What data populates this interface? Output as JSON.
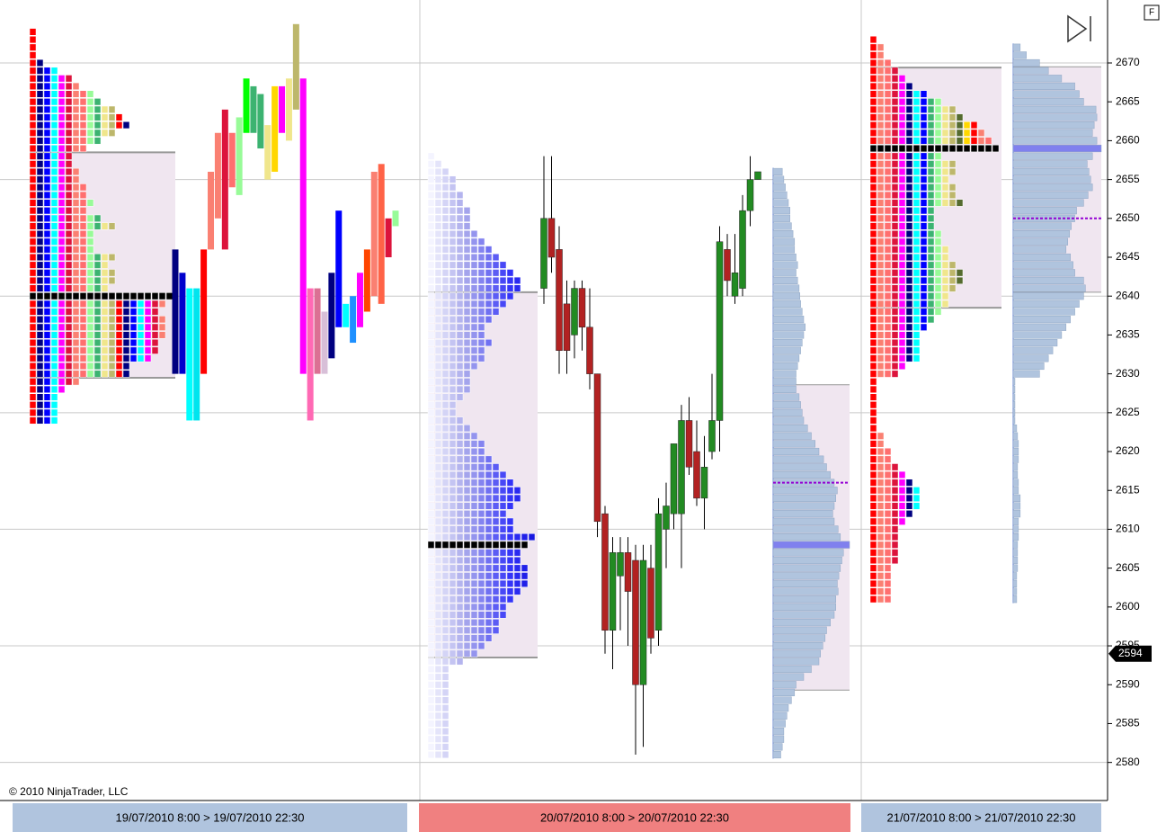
{
  "chart_data": {
    "type": "market-profile",
    "ylim": [
      2575.1,
      2678.1
    ],
    "yticks": [
      2580,
      2585,
      2590,
      2595,
      2600,
      2605,
      2610,
      2615,
      2620,
      2625,
      2630,
      2635,
      2640,
      2645,
      2650,
      2655,
      2660,
      2665,
      2670
    ],
    "grid": true,
    "grid_every": 3,
    "current_price": 2594,
    "copyright": "© 2010 NinjaTrader, LLC",
    "button": "F",
    "sessions": [
      {
        "label": "19/07/2010  8:00 > 19/07/2010  22:30",
        "label_color": "#b0c4de",
        "tpo": {
          "low": 2624,
          "counts": [
            4,
            4,
            4,
            4,
            5,
            7,
            14,
            14,
            17,
            18,
            18,
            19,
            19,
            19,
            18,
            19,
            20,
            11,
            12,
            12,
            11,
            12,
            9,
            9,
            9,
            12,
            10,
            8,
            9,
            8,
            8,
            7,
            7,
            6,
            6,
            8,
            10,
            12,
            14,
            13,
            12,
            10,
            9,
            7,
            6,
            4,
            2,
            1,
            1,
            1,
            1
          ],
          "colors": [
            "#ff0000",
            "#000080",
            "#0000ff",
            "#00ffff",
            "#ff00ff",
            "#dc143c",
            "#fa8072",
            "#ff6f6f",
            "#98fb98",
            "#3cb371",
            "#f0e68c",
            "#bdb76b"
          ]
        },
        "value_area": [
          2629.5,
          2658.5
        ],
        "poc": 2640,
        "bars": {
          "lows": [
            2630,
            2630,
            2624,
            2624,
            2630,
            2646,
            2650,
            2646,
            2654,
            2653,
            2661,
            2661,
            2659,
            2655,
            2656,
            2661,
            2660,
            2664,
            2630,
            2624,
            2630,
            2630,
            2632,
            2636,
            2636,
            2634,
            2636,
            2638,
            2640,
            2639,
            2645,
            2649
          ],
          "highs": [
            2646,
            2643,
            2641,
            2641,
            2646,
            2656,
            2661,
            2664,
            2661,
            2663,
            2668,
            2667,
            2666,
            2662,
            2667,
            2667,
            2668,
            2675,
            2668,
            2641,
            2641,
            2638,
            2643,
            2651,
            2639,
            2640,
            2643,
            2646,
            2656,
            2657,
            2650,
            2651
          ],
          "colors": [
            "#000080",
            "#0000cd",
            "#00ffff",
            "#00e5ee",
            "#ff0000",
            "#fa8072",
            "#fa8072",
            "#dc143c",
            "#ff6f6f",
            "#98fb98",
            "#00ff00",
            "#3cb371",
            "#3cb371",
            "#f0e68c",
            "#ffd700",
            "#ff00ff",
            "#f0e68c",
            "#bdb76b",
            "#ff00ff",
            "#ff69b4",
            "#db7093",
            "#d8bfd8",
            "#000080",
            "#0000ff",
            "#00ffff",
            "#1e90ff",
            "#ff00ff",
            "#ff4500",
            "#fa8072",
            "#ff6347",
            "#dc143c",
            "#98fb98"
          ]
        }
      },
      {
        "label": "20/07/2010  8:00 > 20/07/2010  22:30",
        "label_color": "#f08080",
        "tpo": {
          "low": 2581,
          "counts": [
            3,
            3,
            3,
            3,
            3,
            3,
            3,
            3,
            3,
            3,
            3,
            3,
            5,
            7,
            8,
            9,
            10,
            10,
            11,
            11,
            12,
            13,
            14,
            14,
            14,
            13,
            13,
            14,
            15,
            12,
            12,
            11,
            12,
            13,
            13,
            12,
            11,
            10,
            9,
            8,
            8,
            7,
            6,
            5,
            4,
            4,
            5,
            6,
            6,
            6,
            7,
            8,
            8,
            9,
            8,
            8,
            9,
            10,
            11,
            12,
            13,
            13,
            12,
            11,
            10,
            9,
            8,
            7,
            6,
            6,
            6,
            5,
            5,
            4,
            4,
            3,
            2,
            1
          ],
          "colors": [
            "#f4f4ff",
            "#e4e4fa",
            "#d4d4f6",
            "#c4c4f2",
            "#b4b4ee",
            "#a4a4ec",
            "#9494ee",
            "#8484f0",
            "#7070f2",
            "#5c5cf4",
            "#4848f6",
            "#3434f8",
            "#2a2af0",
            "#2020e8",
            "#1818e0"
          ]
        },
        "value_area": [
          2593.5,
          2640.5
        ],
        "poc": 2608,
        "candles": {
          "open": [
            2641,
            2650,
            2646,
            2639,
            2635,
            2641,
            2636,
            2630,
            2612,
            2597,
            2604,
            2607,
            2606,
            2590,
            2605,
            2597,
            2610,
            2612,
            2612,
            2624,
            2620,
            2614,
            2620,
            2624,
            2646,
            2640,
            2641,
            2651,
            2655
          ],
          "high": [
            2658,
            2658,
            2649,
            2642,
            2642,
            2642,
            2641,
            2630,
            2613,
            2609,
            2609,
            2609,
            2608,
            2608,
            2608,
            2614,
            2616,
            2621,
            2626,
            2627,
            2624,
            2622,
            2630,
            2649,
            2648,
            2648,
            2653,
            2658,
            2656
          ],
          "low": [
            2639,
            2643,
            2630,
            2630,
            2632,
            2633,
            2628,
            2609,
            2594,
            2592,
            2597,
            2595,
            2581,
            2582,
            2594,
            2595,
            2605,
            2610,
            2605,
            2617,
            2613,
            2610,
            2619,
            2620,
            2640,
            2639,
            2640,
            2649,
            2655
          ],
          "close": [
            2650,
            2645,
            2633,
            2633,
            2641,
            2636,
            2630,
            2611,
            2597,
            2607,
            2607,
            2602,
            2590,
            2606,
            2596,
            2612,
            2613,
            2621,
            2624,
            2618,
            2614,
            2618,
            2624,
            2647,
            2642,
            2643,
            2651,
            2655,
            2656
          ]
        },
        "volume": {
          "low": 2581,
          "values": [
            10,
            12,
            14,
            14,
            16,
            18,
            20,
            24,
            28,
            30,
            40,
            50,
            60,
            62,
            65,
            68,
            70,
            75,
            80,
            82,
            82,
            85,
            84,
            86,
            88,
            90,
            92,
            100,
            88,
            85,
            80,
            78,
            80,
            82,
            84,
            80,
            75,
            70,
            66,
            60,
            55,
            50,
            45,
            40,
            38,
            36,
            34,
            30,
            30,
            30,
            32,
            34,
            36,
            38,
            40,
            42,
            40,
            38,
            36,
            35,
            34,
            32,
            30,
            32,
            30,
            28,
            28,
            26,
            24,
            22,
            22,
            20,
            18,
            16,
            14,
            12
          ]
        },
        "volume_value_area": [
          2589.3,
          2628.6
        ],
        "vwap": 2616
      },
      {
        "label": "21/07/2010  8:00 > 21/07/2010  22:30",
        "label_color": "#b0c4de",
        "tpo": {
          "low": 2601,
          "counts": [
            3,
            3,
            3,
            3,
            3,
            4,
            4,
            4,
            4,
            4,
            5,
            6,
            7,
            7,
            7,
            6,
            5,
            4,
            3,
            3,
            2,
            2,
            1,
            1,
            1,
            1,
            1,
            1,
            1,
            4,
            5,
            7,
            7,
            7,
            7,
            8,
            9,
            10,
            11,
            11,
            12,
            13,
            13,
            12,
            11,
            11,
            10,
            10,
            9,
            9,
            9,
            13,
            12,
            12,
            11,
            12,
            12,
            10,
            18,
            17,
            16,
            15,
            13,
            12,
            10,
            8,
            6,
            5,
            4,
            3,
            2,
            2,
            1
          ],
          "colors": [
            "#ff0000",
            "#fa8072",
            "#ff6f6f",
            "#dc143c",
            "#ff00ff",
            "#000080",
            "#00ffff",
            "#0000ff",
            "#3cb371",
            "#98fb98",
            "#f0e68c",
            "#bdb76b",
            "#556b2f",
            "#ffd700"
          ]
        },
        "value_area": [
          2638.5,
          2669.4
        ],
        "poc": 2659,
        "volume": {
          "low": 2601,
          "values": [
            4,
            4,
            4,
            4,
            5,
            5,
            5,
            5,
            6,
            6,
            6,
            8,
            8,
            8,
            6,
            6,
            5,
            5,
            6,
            6,
            6,
            5,
            4,
            2,
            2,
            2,
            2,
            2,
            2,
            30,
            35,
            40,
            45,
            50,
            55,
            60,
            65,
            70,
            75,
            80,
            82,
            80,
            70,
            68,
            65,
            60,
            62,
            64,
            66,
            70,
            72,
            80,
            85,
            90,
            88,
            86,
            84,
            90,
            100,
            95,
            90,
            92,
            95,
            94,
            80,
            75,
            70,
            55,
            40,
            30,
            15,
            8
          ]
        },
        "volume_value_area": [
          2640.5,
          2669.5
        ],
        "vwap": 2650
      }
    ]
  }
}
